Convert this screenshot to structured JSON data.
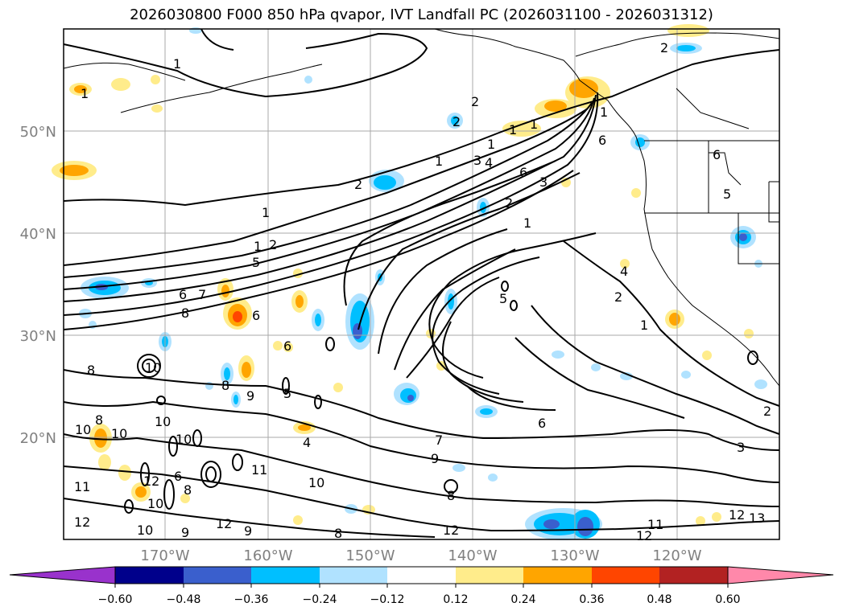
{
  "title": "2026030800 F000 850 hPa qvapor, IVT Landfall PC (2026031100 - 2026031312)",
  "lat_labels": [
    "50°N",
    "40°N",
    "30°N",
    "20°N"
  ],
  "lon_labels": [
    "170°W",
    "160°W",
    "150°W",
    "140°W",
    "130°W",
    "120°W"
  ],
  "colorbar": {
    "colors": [
      "#9932cc",
      "#00008b",
      "#3a5fcd",
      "#00bfff",
      "#b0e2ff",
      "#ffffff",
      "#ffec8b",
      "#ffa500",
      "#ff4500",
      "#b22222",
      "#ff88aa"
    ],
    "tick_labels": [
      "−0.60",
      "−0.48",
      "−0.36",
      "−0.24",
      "−0.12",
      "0.12",
      "0.24",
      "0.36",
      "0.48",
      "0.60"
    ]
  },
  "contour_labels": [
    "1",
    "2",
    "3",
    "4",
    "5",
    "6",
    "7",
    "8",
    "9",
    "10",
    "11",
    "12",
    "13"
  ],
  "colors": {
    "coast": "#000000",
    "grid": "#a8a8a8",
    "axis_label": "#808080"
  }
}
